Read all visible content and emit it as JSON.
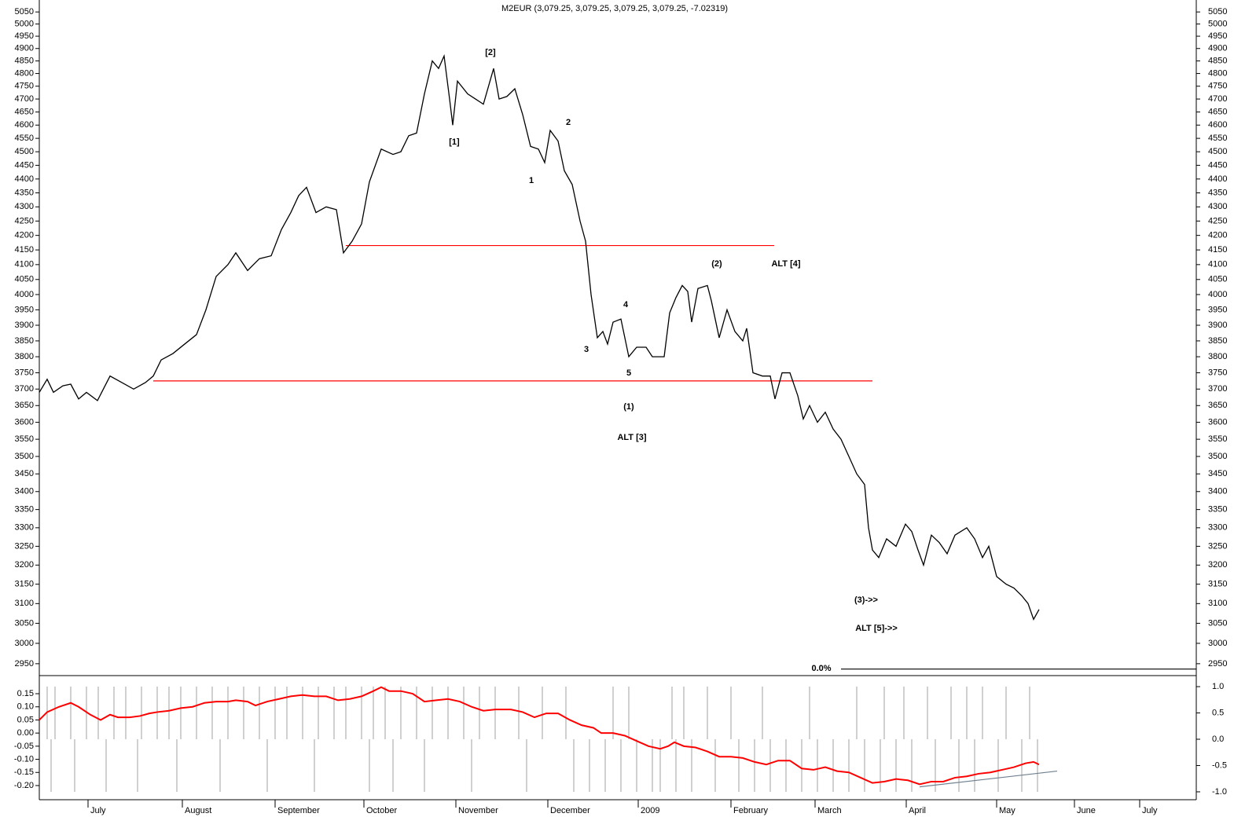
{
  "chart_data": [
    {
      "type": "line",
      "title": "M2EUR (3,079.25, 3,079.25, 3,079.25, 3,079.25, -7.02319)",
      "log_scale": true,
      "mirror_y_axis": true,
      "xlim": [
        0,
        294.4
      ],
      "ylim": [
        2925,
        5100
      ],
      "yticks": [
        2950,
        3000,
        3050,
        3100,
        3150,
        3200,
        3250,
        3300,
        3350,
        3400,
        3450,
        3500,
        3550,
        3600,
        3650,
        3700,
        3750,
        3800,
        3850,
        3900,
        3950,
        4000,
        4050,
        4100,
        4150,
        4200,
        4250,
        4300,
        4350,
        4400,
        4450,
        4500,
        4550,
        4600,
        4650,
        4700,
        4750,
        4800,
        4850,
        4900,
        4950,
        5000,
        5050
      ],
      "x": [
        0,
        2,
        3.6,
        6,
        8,
        10,
        12,
        14.8,
        18,
        21,
        24,
        27,
        29,
        31,
        34,
        37,
        40,
        42.4,
        45,
        48,
        50,
        53,
        56,
        59,
        61.6,
        64,
        66,
        68,
        70.4,
        73,
        75.6,
        77.4,
        79.6,
        82,
        84,
        87,
        90,
        92,
        94,
        96,
        98,
        100,
        101.6,
        103,
        104.4,
        105.2,
        106.4,
        109,
        111,
        113,
        115.6,
        117,
        119,
        121,
        123,
        125,
        127,
        128.6,
        130,
        132,
        133.6,
        135.6,
        137.6,
        139,
        140.4,
        142,
        143.4,
        144.6,
        146,
        148,
        150,
        152,
        154.4,
        156,
        159,
        160.4,
        162,
        163.6,
        165,
        166,
        167.6,
        170,
        171,
        173,
        175,
        177,
        179,
        180,
        181.6,
        184,
        186,
        187.2,
        189,
        191,
        193,
        194.4,
        196,
        198,
        200,
        202,
        204,
        206,
        208,
        210,
        211,
        212,
        213.6,
        215.6,
        218,
        220.4,
        222,
        223.6,
        225,
        227,
        229,
        231,
        233,
        236,
        238,
        240,
        241.6,
        243.6,
        246,
        248,
        250,
        251.6,
        253,
        254.4
      ],
      "series": [
        {
          "color": "#000000",
          "values": [
            3690,
            3730,
            3690,
            3710,
            3715,
            3670,
            3690,
            3665,
            3740,
            3720,
            3700,
            3720,
            3740,
            3790,
            3810,
            3840,
            3870,
            3950,
            4060,
            4100,
            4140,
            4080,
            4120,
            4130,
            4220,
            4280,
            4340,
            4370,
            4280,
            4300,
            4290,
            4140,
            4180,
            4240,
            4390,
            4510,
            4490,
            4500,
            4560,
            4570,
            4720,
            4850,
            4820,
            4870,
            4700,
            4600,
            4770,
            4720,
            4700,
            4680,
            4820,
            4700,
            4710,
            4740,
            4640,
            4520,
            4510,
            4460,
            4580,
            4540,
            4430,
            4380,
            4250,
            4180,
            4000,
            3860,
            3880,
            3840,
            3910,
            3920,
            3800,
            3830,
            3830,
            3800,
            3800,
            3940,
            3990,
            4030,
            4010,
            3910,
            4020,
            4030,
            3980,
            3860,
            3950,
            3880,
            3850,
            3890,
            3750,
            3740,
            3740,
            3670,
            3750,
            3750,
            3680,
            3610,
            3650,
            3600,
            3630,
            3580,
            3550,
            3500,
            3450,
            3420,
            3300,
            3240,
            3220,
            3270,
            3250,
            3310,
            3290,
            3240,
            3200,
            3280,
            3260,
            3230,
            3280,
            3300,
            3270,
            3220,
            3250,
            3170,
            3150,
            3140,
            3120,
            3100,
            3060,
            3085
          ]
        }
      ],
      "lines": [
        {
          "color": "#ff0000",
          "x": [
            78,
            187
          ],
          "y": [
            4165,
            4165
          ]
        },
        {
          "color": "#ff0000",
          "x": [
            29,
            212
          ],
          "y": [
            3725,
            3725
          ]
        },
        {
          "color": "#000000",
          "x": [
            204,
            294.4
          ],
          "y": [
            2937,
            2937
          ]
        }
      ],
      "annotations": [
        {
          "text": "[2]",
          "x": 114.8,
          "y": 4883,
          "color": "#808000"
        },
        {
          "text": "[1]",
          "x": 105.6,
          "y": 4535,
          "color": "#808000"
        },
        {
          "text": "2",
          "x": 134.6,
          "y": 4609,
          "color": "#008000"
        },
        {
          "text": "1",
          "x": 125.2,
          "y": 4394,
          "color": "#008000"
        },
        {
          "text": "(2)",
          "x": 172.4,
          "y": 4102,
          "color": "#000080"
        },
        {
          "text": "ALT [4]",
          "x": 190,
          "y": 4102,
          "color": "#808000"
        },
        {
          "text": "4",
          "x": 149.2,
          "y": 3966,
          "color": "#008000"
        },
        {
          "text": "3",
          "x": 139.2,
          "y": 3822,
          "color": "#008000"
        },
        {
          "text": "5",
          "x": 150,
          "y": 3749,
          "color": "#008000"
        },
        {
          "text": "(1)",
          "x": 150,
          "y": 3646,
          "color": "#000080"
        },
        {
          "text": "ALT [3]",
          "x": 150.8,
          "y": 3555,
          "color": "#808000"
        },
        {
          "text": "(3)->>",
          "x": 210.4,
          "y": 3109,
          "color": "#000080"
        },
        {
          "text": "ALT [5]->>",
          "x": 213,
          "y": 3037,
          "color": "#808000"
        },
        {
          "text": "0.0%",
          "x": 199,
          "y": 2938,
          "color": "#000080"
        }
      ]
    },
    {
      "type": "line",
      "xlim": [
        0,
        294.4
      ],
      "ylim": [
        -0.254,
        0.213
      ],
      "y2lim": [
        -1.15,
        1.18
      ],
      "xticks": [
        {
          "value": 12.4,
          "label": "July"
        },
        {
          "value": 36.4,
          "label": "August"
        },
        {
          "value": 60,
          "label": "September"
        },
        {
          "value": 82.6,
          "label": "October"
        },
        {
          "value": 106,
          "label": "November"
        },
        {
          "value": 129.4,
          "label": "December"
        },
        {
          "value": 152.4,
          "label": "2009"
        },
        {
          "value": 176,
          "label": "February"
        },
        {
          "value": 197.4,
          "label": "March"
        },
        {
          "value": 220.6,
          "label": "April"
        },
        {
          "value": 243.6,
          "label": "May"
        },
        {
          "value": 263.4,
          "label": "June"
        },
        {
          "value": 280,
          "label": "July"
        }
      ],
      "yticks": [
        0.15,
        {
          "value": 0.1,
          "label": "0.10"
        },
        0.05,
        {
          "value": 0,
          "label": "0.00"
        },
        -0.05,
        {
          "value": -0.1,
          "label": "-0.10"
        },
        -0.15,
        {
          "value": -0.2,
          "label": "-0.20"
        }
      ],
      "y2ticks": [
        {
          "value": 1,
          "label": "1.0"
        },
        0.5,
        {
          "value": 0,
          "label": "0.0"
        },
        -0.5,
        {
          "value": -1,
          "label": "-1.0"
        }
      ],
      "x": [
        0,
        2,
        5,
        8,
        10,
        13,
        15.6,
        18,
        20,
        23,
        25.6,
        28,
        30,
        33,
        36,
        39,
        42,
        45,
        48,
        50,
        53,
        55,
        58,
        61,
        64,
        67,
        70,
        73,
        76,
        79,
        82,
        85,
        87,
        89,
        92,
        95,
        98,
        101,
        104,
        107,
        110,
        113,
        116,
        120,
        123,
        126,
        129,
        132,
        135,
        138,
        141,
        143,
        146,
        149,
        152,
        155,
        158,
        160,
        161.6,
        164,
        167,
        170,
        173,
        176,
        179,
        182,
        185,
        188,
        191,
        194,
        197,
        200,
        203,
        206,
        209,
        212,
        215,
        218,
        221,
        224,
        227,
        230,
        233,
        236,
        239,
        242,
        245,
        248,
        251,
        253,
        254.4
      ],
      "series": [
        {
          "color": "#ff0000",
          "values": [
            0.05,
            0.08,
            0.1,
            0.115,
            0.1,
            0.07,
            0.05,
            0.07,
            0.06,
            0.06,
            0.065,
            0.075,
            0.08,
            0.085,
            0.095,
            0.1,
            0.115,
            0.12,
            0.12,
            0.125,
            0.12,
            0.105,
            0.12,
            0.13,
            0.14,
            0.145,
            0.14,
            0.14,
            0.125,
            0.13,
            0.14,
            0.16,
            0.175,
            0.16,
            0.16,
            0.15,
            0.12,
            0.125,
            0.13,
            0.12,
            0.1,
            0.085,
            0.09,
            0.09,
            0.08,
            0.06,
            0.075,
            0.075,
            0.05,
            0.03,
            0.02,
            0,
            0,
            -0.01,
            -0.03,
            -0.05,
            -0.06,
            -0.05,
            -0.035,
            -0.05,
            -0.055,
            -0.07,
            -0.09,
            -0.09,
            -0.095,
            -0.11,
            -0.12,
            -0.105,
            -0.105,
            -0.135,
            -0.14,
            -0.13,
            -0.145,
            -0.15,
            -0.17,
            -0.19,
            -0.185,
            -0.175,
            -0.18,
            -0.195,
            -0.185,
            -0.185,
            -0.17,
            -0.165,
            -0.155,
            -0.15,
            -0.14,
            -0.13,
            -0.115,
            -0.11,
            -0.12
          ]
        }
      ],
      "signal": {
        "axis": "y2",
        "color": "#a0a0a0",
        "x": [
          2,
          4,
          8,
          12,
          15,
          19,
          22,
          26,
          30,
          33,
          36,
          40,
          44,
          48,
          52,
          56,
          60,
          63,
          67,
          71,
          75,
          78,
          82,
          85,
          88,
          92,
          96,
          100,
          104,
          108,
          112,
          116,
          122,
          128,
          134,
          146,
          150,
          161,
          164,
          170,
          176,
          184,
          196,
          208,
          215,
          220,
          226,
          232,
          236,
          240,
          246,
          252,
          3,
          9,
          17,
          25,
          35,
          46,
          58,
          70,
          84,
          90,
          98,
          110,
          124,
          136,
          140,
          144,
          148,
          152,
          156,
          158,
          162,
          166,
          172,
          178,
          182,
          186,
          190,
          194,
          198,
          202,
          206,
          210,
          214,
          218,
          222,
          228,
          234,
          238,
          244,
          250,
          254
        ],
        "values": [
          1,
          1,
          1,
          1,
          1,
          1,
          1,
          1,
          1,
          1,
          1,
          1,
          1,
          1,
          1,
          1,
          1,
          1,
          1,
          1,
          1,
          1,
          1,
          1,
          1,
          1,
          1,
          1,
          1,
          1,
          1,
          1,
          1,
          1,
          1,
          1,
          1,
          1,
          1,
          1,
          1,
          1,
          1,
          1,
          1,
          1,
          1,
          1,
          1,
          1,
          1,
          1,
          -1,
          -1,
          -1,
          -1,
          -1,
          -1,
          -1,
          -1,
          -1,
          -1,
          -1,
          -1,
          -1,
          -1,
          -1,
          -1,
          -1,
          -1,
          -1,
          -1,
          -1,
          -1,
          -1,
          -1,
          -1,
          -1,
          -1,
          -1,
          -1,
          -1,
          -1,
          -1,
          -1,
          -1,
          -1,
          -1,
          -1,
          -1,
          -1,
          -1,
          -1
        ]
      },
      "lines": [
        {
          "color": "#708090",
          "x": [
            224,
            259
          ],
          "y": [
            -0.205,
            -0.145
          ]
        }
      ]
    }
  ]
}
